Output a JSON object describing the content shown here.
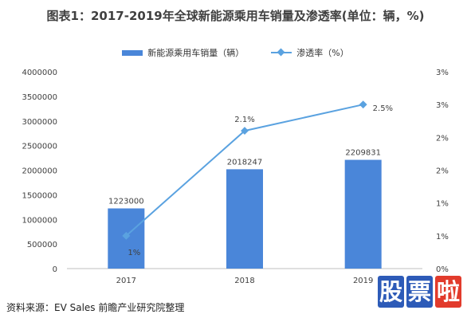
{
  "header": {
    "title": "图表1：2017-2019年全球新能源乘用车销量及渗透率(单位：辆，%)"
  },
  "legend": {
    "bar_label": "新能源乘用车销量（辆）",
    "line_label": "渗透率（%）"
  },
  "footer": {
    "source": "资料来源：EV Sales 前瞻产业研究院整理"
  },
  "logo": {
    "chars": [
      "股",
      "票",
      "啦"
    ]
  },
  "colors": {
    "bar": "#4a86d9",
    "line": "#5aa2e0",
    "axis": "#bfbfbf",
    "text": "#404040",
    "logo_blue": "#2d5bb8",
    "logo_red": "#e23b2c"
  },
  "chart_data": {
    "type": "bar",
    "title": "图表1：2017-2019年全球新能源乘用车销量及渗透率(单位：辆，%)",
    "categories": [
      "2017",
      "2018",
      "2019"
    ],
    "series": [
      {
        "name": "新能源乘用车销量（辆）",
        "type": "bar",
        "axis": "left",
        "values": [
          1223000,
          2018247,
          2209831
        ],
        "labels": [
          "1223000",
          "2018247",
          "2209831"
        ]
      },
      {
        "name": "渗透率（%）",
        "type": "line",
        "axis": "right",
        "values": [
          0.5,
          2.1,
          2.5
        ],
        "labels": [
          "1%",
          "2.1%",
          "2.5%"
        ]
      }
    ],
    "y_left": {
      "min": 0,
      "max": 4000000,
      "ticks": [
        "0",
        "500000",
        "1000000",
        "1500000",
        "2000000",
        "2500000",
        "3000000",
        "3500000",
        "4000000"
      ]
    },
    "y_right": {
      "min": 0,
      "max": 3,
      "ticks": [
        "0%",
        "1%",
        "1%",
        "2%",
        "2%",
        "3%",
        "3%"
      ]
    },
    "grid": false,
    "legend_position": "top"
  }
}
